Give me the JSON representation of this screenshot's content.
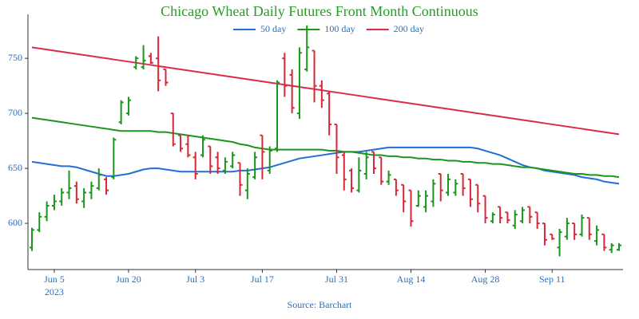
{
  "chart_data": {
    "type": "ohlc",
    "title": "Chicago Wheat Daily Futures Front Month Continuous",
    "source": "Source: Barchart",
    "year_label": "2023",
    "up_color": "#1a961a",
    "down_color": "#d62839",
    "ylim": [
      558,
      790
    ],
    "yticks": [
      600,
      650,
      700,
      750
    ],
    "categories": [
      null,
      null,
      null,
      "Jun 5",
      null,
      null,
      null,
      null,
      null,
      null,
      null,
      null,
      null,
      "Jun 20",
      null,
      null,
      null,
      null,
      null,
      null,
      null,
      null,
      "Jul 3",
      null,
      null,
      null,
      null,
      null,
      null,
      null,
      null,
      "Jul 17",
      null,
      null,
      null,
      null,
      null,
      null,
      null,
      null,
      null,
      "Jul 31",
      null,
      null,
      null,
      null,
      null,
      null,
      null,
      null,
      null,
      "Aug 14",
      null,
      null,
      null,
      null,
      null,
      null,
      null,
      null,
      null,
      "Aug 28",
      null,
      null,
      null,
      null,
      null,
      null,
      null,
      null,
      "Sep 11",
      null,
      null,
      null,
      null,
      null,
      null,
      null,
      null,
      null
    ],
    "ohlc": [
      [
        578,
        596,
        575,
        594
      ],
      [
        594,
        610,
        592,
        606
      ],
      [
        606,
        620,
        602,
        616
      ],
      [
        616,
        626,
        612,
        620
      ],
      [
        620,
        632,
        616,
        628
      ],
      [
        628,
        648,
        622,
        632
      ],
      [
        634,
        638,
        618,
        622
      ],
      [
        620,
        632,
        614,
        628
      ],
      [
        628,
        638,
        622,
        634
      ],
      [
        632,
        650,
        630,
        644
      ],
      [
        640,
        642,
        626,
        630
      ],
      [
        642,
        678,
        640,
        676
      ],
      [
        692,
        712,
        690,
        710
      ],
      [
        700,
        715,
        698,
        712
      ],
      [
        742,
        752,
        740,
        750
      ],
      [
        742,
        762,
        740,
        748
      ],
      [
        752,
        755,
        745,
        746
      ],
      [
        750,
        770,
        720,
        730
      ],
      [
        740,
        740,
        725,
        728
      ],
      [
        700,
        700,
        670,
        672
      ],
      [
        680,
        680,
        665,
        668
      ],
      [
        672,
        680,
        660,
        662
      ],
      [
        660,
        665,
        640,
        645
      ],
      [
        662,
        680,
        660,
        676
      ],
      [
        670,
        670,
        645,
        652
      ],
      [
        660,
        665,
        645,
        650
      ],
      [
        648,
        660,
        645,
        656
      ],
      [
        652,
        665,
        650,
        662
      ],
      [
        655,
        655,
        625,
        635
      ],
      [
        630,
        650,
        622,
        645
      ],
      [
        642,
        665,
        640,
        660
      ],
      [
        680,
        680,
        640,
        665
      ],
      [
        648,
        670,
        645,
        666
      ],
      [
        668,
        730,
        665,
        728
      ],
      [
        750,
        755,
        715,
        725
      ],
      [
        735,
        740,
        700,
        705
      ],
      [
        700,
        760,
        695,
        755
      ],
      [
        740,
        780,
        738,
        760
      ],
      [
        757,
        757,
        710,
        725
      ],
      [
        725,
        730,
        705,
        712
      ],
      [
        718,
        720,
        680,
        690
      ],
      [
        690,
        690,
        645,
        660
      ],
      [
        662,
        665,
        630,
        640
      ],
      [
        648,
        650,
        628,
        632
      ],
      [
        630,
        660,
        628,
        648
      ],
      [
        645,
        665,
        640,
        660
      ],
      [
        665,
        665,
        645,
        650
      ],
      [
        660,
        660,
        635,
        638
      ],
      [
        638,
        648,
        635,
        644
      ],
      [
        640,
        640,
        625,
        630
      ],
      [
        635,
        635,
        610,
        620
      ],
      [
        630,
        630,
        597,
        602
      ],
      [
        616,
        630,
        615,
        625
      ],
      [
        615,
        630,
        610,
        625
      ],
      [
        620,
        640,
        615,
        636
      ],
      [
        645,
        645,
        620,
        630
      ],
      [
        628,
        645,
        625,
        640
      ],
      [
        628,
        640,
        625,
        636
      ],
      [
        645,
        645,
        625,
        632
      ],
      [
        640,
        640,
        615,
        622
      ],
      [
        635,
        635,
        610,
        618
      ],
      [
        625,
        625,
        600,
        605
      ],
      [
        602,
        610,
        600,
        608
      ],
      [
        615,
        615,
        600,
        605
      ],
      [
        610,
        610,
        600,
        603
      ],
      [
        598,
        612,
        595,
        608
      ],
      [
        602,
        615,
        600,
        612
      ],
      [
        615,
        615,
        600,
        606
      ],
      [
        610,
        610,
        595,
        600
      ],
      [
        600,
        600,
        580,
        585
      ],
      [
        590,
        590,
        585,
        586
      ],
      [
        578,
        595,
        570,
        592
      ],
      [
        588,
        605,
        585,
        600
      ],
      [
        600,
        600,
        585,
        590
      ],
      [
        590,
        608,
        588,
        605
      ],
      [
        605,
        605,
        585,
        590
      ],
      [
        584,
        598,
        580,
        594
      ],
      [
        590,
        590,
        575,
        578
      ],
      [
        576,
        582,
        573,
        580
      ],
      [
        576,
        582,
        575,
        580
      ]
    ],
    "series": [
      {
        "name": "50 day",
        "color": "#1f6fd6",
        "values": [
          656,
          655,
          654,
          653,
          652,
          652,
          651,
          649,
          647,
          645,
          643,
          643,
          644,
          645,
          647,
          649,
          650,
          650,
          649,
          648,
          647,
          647,
          647,
          647,
          647,
          647,
          647,
          647,
          648,
          648,
          649,
          650,
          651,
          653,
          655,
          657,
          659,
          660,
          661,
          662,
          663,
          664,
          665,
          665,
          665,
          666,
          667,
          668,
          669,
          669,
          669,
          669,
          669,
          669,
          669,
          669,
          669,
          669,
          669,
          669,
          668,
          666,
          664,
          662,
          659,
          656,
          653,
          651,
          650,
          648,
          647,
          646,
          645,
          644,
          642,
          641,
          640,
          638,
          637,
          636
        ]
      },
      {
        "name": "100 day",
        "color": "#1a961a",
        "values": [
          696,
          695,
          694,
          693,
          692,
          691,
          690,
          689,
          688,
          687,
          686,
          685,
          684,
          684,
          684,
          684,
          684,
          683,
          683,
          682,
          681,
          680,
          679,
          678,
          677,
          676,
          675,
          674,
          672,
          671,
          669,
          668,
          667,
          667,
          667,
          667,
          667,
          667,
          667,
          667,
          666,
          666,
          665,
          665,
          664,
          663,
          662,
          662,
          661,
          661,
          660,
          660,
          659,
          659,
          658,
          658,
          657,
          657,
          656,
          656,
          655,
          655,
          654,
          654,
          653,
          652,
          651,
          651,
          650,
          649,
          648,
          647,
          646,
          645,
          645,
          644,
          644,
          643,
          643,
          642
        ]
      },
      {
        "name": "200 day",
        "color": "#dc2a4a",
        "values": [
          760,
          759,
          758,
          757,
          756,
          755,
          754,
          753,
          752,
          751,
          750,
          749,
          748,
          747,
          746,
          745,
          744,
          743,
          742,
          741,
          740,
          739,
          738,
          737,
          736,
          735,
          734,
          733,
          732,
          731,
          730,
          729,
          728,
          727,
          726,
          725,
          724,
          723,
          722,
          721,
          720,
          719,
          718,
          717,
          716,
          715,
          714,
          713,
          712,
          711,
          710,
          709,
          708,
          707,
          706,
          705,
          704,
          703,
          702,
          701,
          700,
          699,
          698,
          697,
          696,
          695,
          694,
          693,
          692,
          691,
          690,
          689,
          688,
          687,
          686,
          685,
          684,
          683,
          682,
          681
        ]
      }
    ]
  }
}
